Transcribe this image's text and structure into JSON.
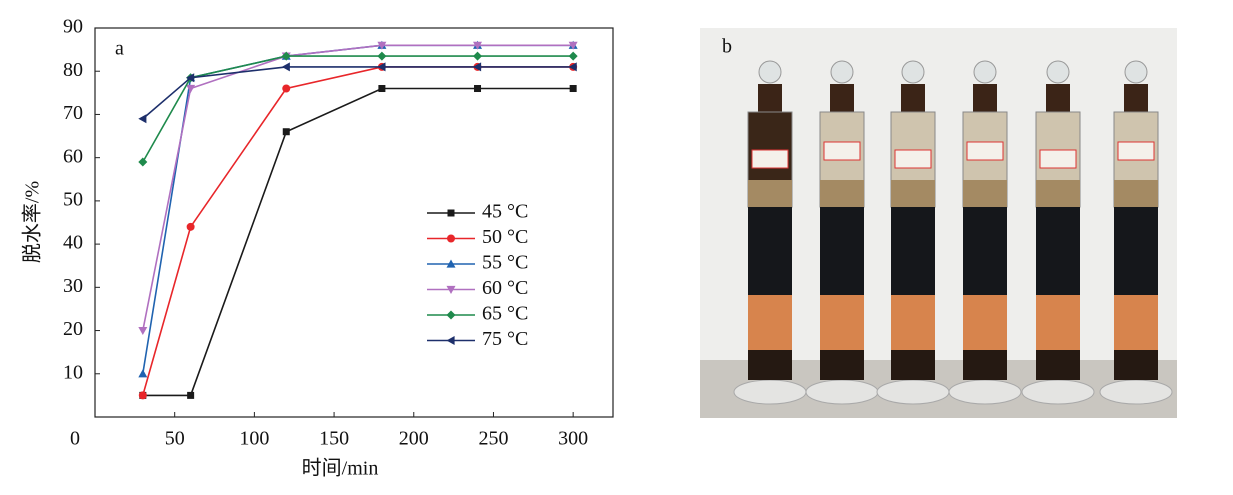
{
  "chart_data": {
    "type": "line",
    "panel_label": "a",
    "xlabel": "时间/min",
    "ylabel": "脱水率/%",
    "x": [
      30,
      60,
      120,
      180,
      240,
      300
    ],
    "xlim": [
      0,
      325
    ],
    "xticks": [
      0,
      50,
      100,
      150,
      200,
      250,
      300
    ],
    "ylim": [
      0,
      90
    ],
    "yticks": [
      10,
      20,
      30,
      40,
      50,
      60,
      70,
      80,
      90
    ],
    "grid": false,
    "series": [
      {
        "name": "45 °C",
        "color": "#1a1a1a",
        "marker": "square",
        "values": [
          5,
          5,
          66,
          76,
          76,
          76
        ]
      },
      {
        "name": "50 °C",
        "color": "#e8262a",
        "marker": "circle",
        "values": [
          5,
          44,
          76,
          81,
          81,
          81
        ]
      },
      {
        "name": "55 °C",
        "color": "#2063b0",
        "marker": "triangle-up",
        "values": [
          10,
          78.5,
          83.5,
          86,
          86,
          86
        ]
      },
      {
        "name": "60 °C",
        "color": "#b070c0",
        "marker": "triangle-down",
        "values": [
          20,
          76,
          83.5,
          86,
          86,
          86
        ]
      },
      {
        "name": "65 °C",
        "color": "#1f8a4c",
        "marker": "diamond",
        "values": [
          59,
          78.5,
          83.5,
          83.5,
          83.5,
          83.5
        ]
      },
      {
        "name": "75 °C",
        "color": "#1d2f6b",
        "marker": "triangle-left",
        "values": [
          69,
          78.5,
          81,
          81,
          81,
          81
        ]
      }
    ]
  },
  "photo": {
    "label": "b"
  }
}
